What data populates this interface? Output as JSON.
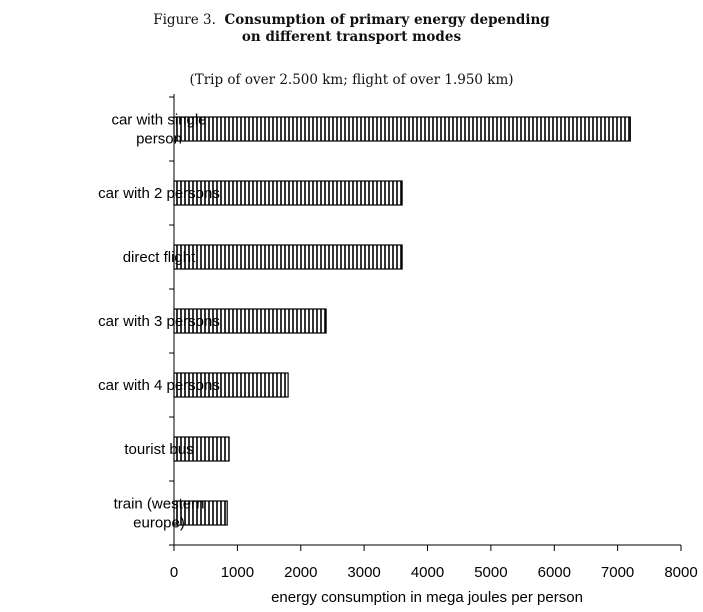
{
  "figure": {
    "label": "Figure 3.",
    "title_line1": "Consumption of primary energy depending",
    "title_line2": "on different transport modes",
    "subtitle": "(Trip of over 2.500 km; flight of over 1.950 km)"
  },
  "chart_data": {
    "type": "bar",
    "orientation": "horizontal",
    "categories": [
      [
        "car with single",
        "person"
      ],
      [
        "car with 2 persons"
      ],
      [
        "direct flight"
      ],
      [
        "car with 3 persons"
      ],
      [
        "car with 4 persons"
      ],
      [
        "tourist bus"
      ],
      [
        "train (western",
        "europe)"
      ]
    ],
    "values": [
      7200,
      3600,
      3600,
      2400,
      1800,
      870,
      840
    ],
    "xlabel": "energy consumption in mega joules per person",
    "xlim": [
      0,
      8000
    ],
    "xticks": [
      "0",
      "1000",
      "2000",
      "3000",
      "4000",
      "5000",
      "6000",
      "7000",
      "8000"
    ],
    "grid": false,
    "legend": "none",
    "bar_pattern": "vertical-hatch",
    "colors": {
      "bar_fill": "#ffffff",
      "bar_stroke": "#000000",
      "axis": "#000000"
    }
  }
}
